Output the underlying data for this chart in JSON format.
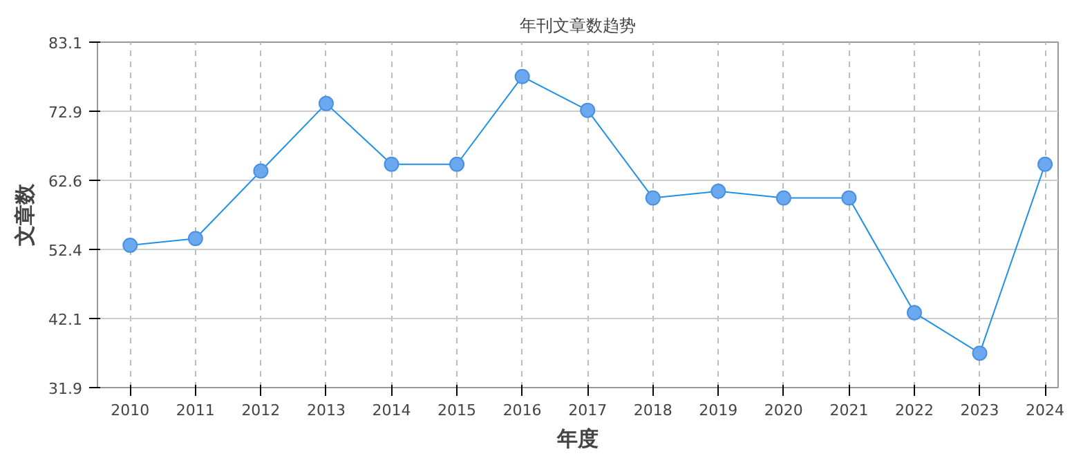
{
  "chart_data": {
    "type": "line",
    "title": "年刊文章数趋势",
    "xlabel": "年度",
    "ylabel": "文章数",
    "x": [
      2010,
      2011,
      2012,
      2013,
      2014,
      2015,
      2016,
      2017,
      2018,
      2019,
      2020,
      2021,
      2022,
      2023,
      2024
    ],
    "series": [
      {
        "color": "#1e90e8",
        "values": [
          53,
          54,
          64,
          74,
          65,
          65,
          78,
          73,
          60,
          61,
          60,
          60,
          43,
          37,
          65
        ]
      }
    ],
    "xlim": [
      2009.5,
      2024.2
    ],
    "xticks": [
      2010,
      2011,
      2012,
      2013,
      2014,
      2015,
      2016,
      2017,
      2018,
      2019,
      2020,
      2021,
      2022,
      2023,
      2024
    ],
    "ylim": [
      31.9,
      83.1
    ],
    "yticks": [
      31.9,
      42.1,
      52.4,
      62.6,
      72.9,
      83.1
    ],
    "grid": true,
    "marker": "circle",
    "line_style": "solid"
  }
}
